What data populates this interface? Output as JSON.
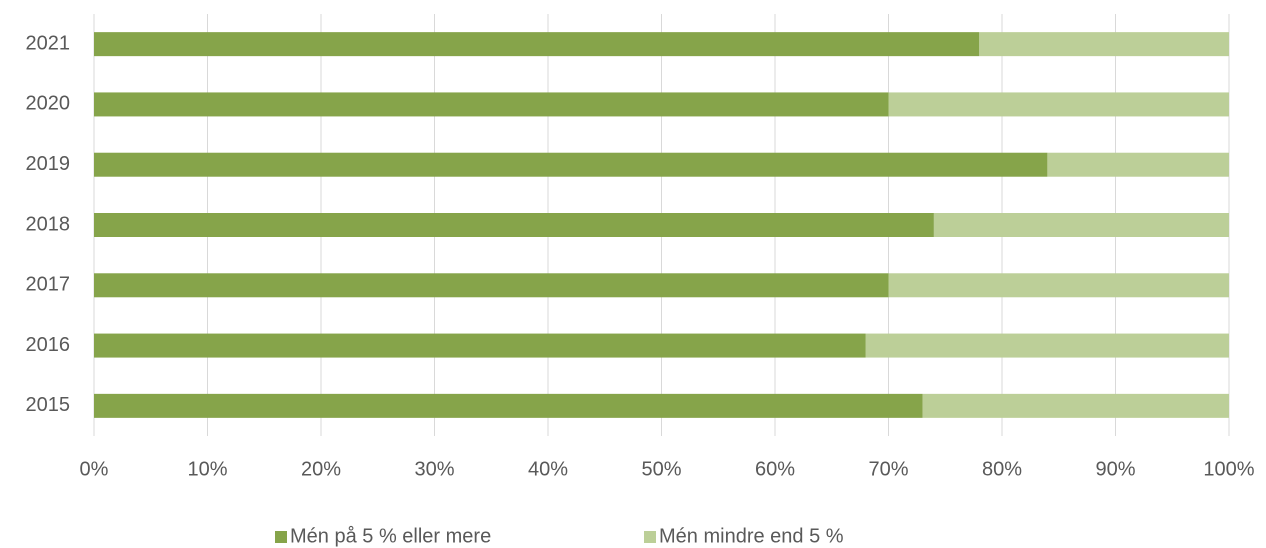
{
  "chart_data": {
    "type": "stacked_barh",
    "categories": [
      "2021",
      "2020",
      "2019",
      "2018",
      "2017",
      "2016",
      "2015"
    ],
    "series": [
      {
        "name": "Mén på 5 % eller mere",
        "color": "#86a44a",
        "values": [
          78,
          70,
          84,
          74,
          70,
          68,
          73
        ]
      },
      {
        "name": "Mén mindre end 5 %",
        "color": "#bccf98",
        "values": [
          22,
          30,
          16,
          26,
          30,
          32,
          27
        ]
      }
    ],
    "xlim": [
      0,
      100
    ],
    "xticks": [
      {
        "value": 0,
        "label": "0%"
      },
      {
        "value": 10,
        "label": "10%"
      },
      {
        "value": 20,
        "label": "20%"
      },
      {
        "value": 30,
        "label": "30%"
      },
      {
        "value": 40,
        "label": "40%"
      },
      {
        "value": 50,
        "label": "50%"
      },
      {
        "value": 60,
        "label": "60%"
      },
      {
        "value": 70,
        "label": "70%"
      },
      {
        "value": 80,
        "label": "80%"
      },
      {
        "value": 90,
        "label": "90%"
      },
      {
        "value": 100,
        "label": "100%"
      }
    ],
    "grid": true,
    "legend": "bottom"
  }
}
